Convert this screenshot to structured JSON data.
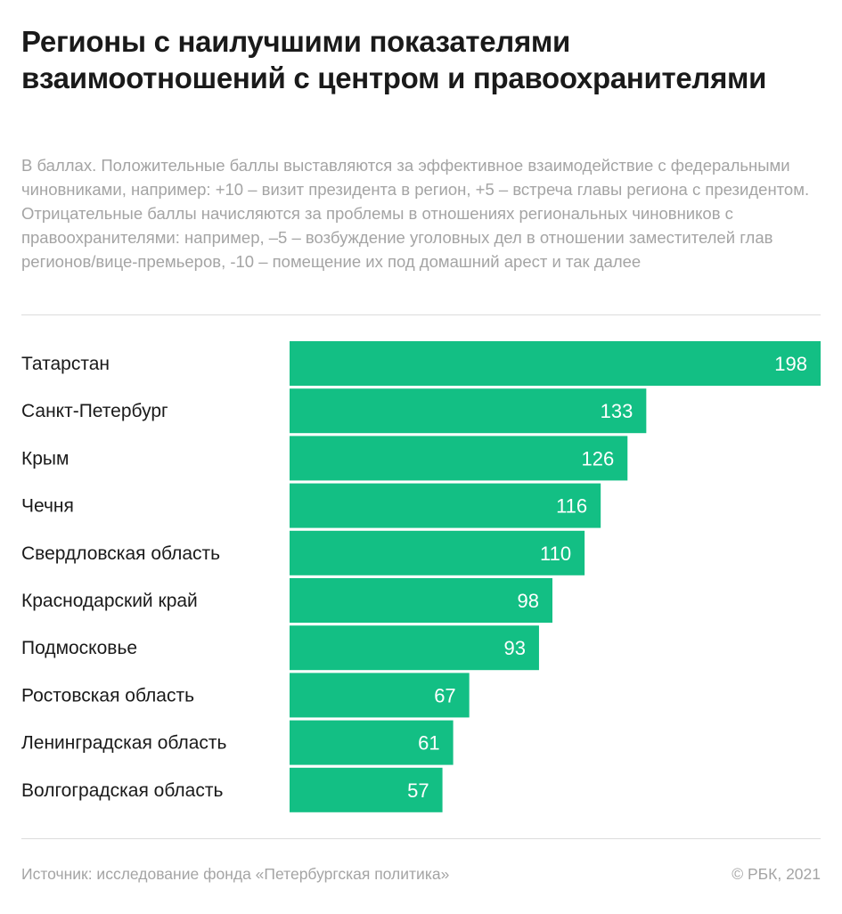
{
  "header": {
    "title": "Регионы с наилучшими показателями взаимоотношений с центром и правоохранителями",
    "subtitle": "В баллах. Положительные баллы выставляются за эффективное взаимодействие с федеральными чиновниками, например: +10 – визит президента в регион, +5 – встреча главы региона с президентом. Отрицательные баллы начисляются за проблемы в отношениях региональных чиновников с правоохранителями: например, –5 – возбуждение уголовных дел в отношении заместителей глав регионов/вице-премьеров, -10 – помещение их под домашний арест и так далее"
  },
  "chart_data": {
    "type": "bar",
    "orientation": "horizontal",
    "categories": [
      "Татарстан",
      "Санкт-Петербург",
      "Крым",
      "Чечня",
      "Свердловская область",
      "Краснодарский край",
      "Подмосковье",
      "Ростовская область",
      "Ленинградская область",
      "Волгоградская область"
    ],
    "values": [
      198,
      133,
      126,
      116,
      110,
      98,
      93,
      67,
      61,
      57
    ],
    "xlim": [
      0,
      198
    ],
    "grid": false,
    "legend": "none",
    "bar_color": "#13bf84",
    "value_label_color": "#ffffff"
  },
  "footer": {
    "source": "Источник:  исследование фонда «Петербургская политика»",
    "copyright": "©  РБК, 2021"
  }
}
